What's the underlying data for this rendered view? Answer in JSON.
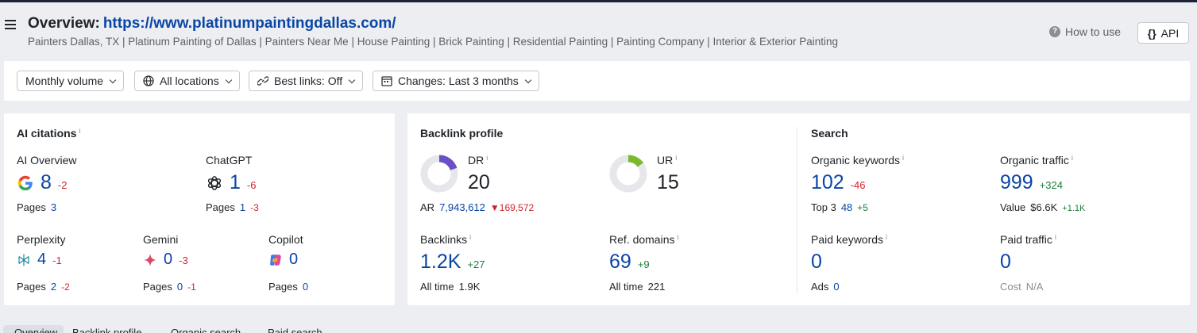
{
  "header": {
    "title_prefix": "Overview:",
    "url": "https://www.platinumpaintingdallas.com/",
    "subtitle": "Painters Dallas, TX | Platinum Painting of Dallas | Painters Near Me | House Painting | Brick Painting | Residential Painting | Painting Company | Interior & Exterior Painting",
    "how_to_use": "How to use",
    "api_label": "API",
    "api_icon_text": "{}"
  },
  "filters": {
    "volume": "Monthly volume",
    "locations": "All locations",
    "best_links": "Best links: Off",
    "changes": "Changes: Last 3 months"
  },
  "ai_citations": {
    "title": "AI citations",
    "info": "i",
    "ai_overview": {
      "label": "AI Overview",
      "value": "8",
      "delta": "-2",
      "pages_label": "Pages",
      "pages": "3"
    },
    "chatgpt": {
      "label": "ChatGPT",
      "value": "1",
      "delta": "-6",
      "pages_label": "Pages",
      "pages": "1",
      "pages_delta": "-3"
    },
    "perplexity": {
      "label": "Perplexity",
      "value": "4",
      "delta": "-1",
      "pages_label": "Pages",
      "pages": "2",
      "pages_delta": "-2"
    },
    "gemini": {
      "label": "Gemini",
      "value": "0",
      "delta": "-3",
      "pages_label": "Pages",
      "pages": "0",
      "pages_delta": "-1"
    },
    "copilot": {
      "label": "Copilot",
      "value": "0",
      "pages_label": "Pages",
      "pages": "0"
    }
  },
  "backlink_profile": {
    "title": "Backlink profile",
    "dr": {
      "label": "DR",
      "value": "20",
      "fill": 0.2
    },
    "ar": {
      "label": "AR",
      "value": "7,943,612",
      "delta": "169,572"
    },
    "ur": {
      "label": "UR",
      "value": "15",
      "fill": 0.15
    },
    "backlinks": {
      "label": "Backlinks",
      "value": "1.2K",
      "delta": "+27",
      "all_time_label": "All time",
      "all_time": "1.9K"
    },
    "ref_domains": {
      "label": "Ref. domains",
      "value": "69",
      "delta": "+9",
      "all_time_label": "All time",
      "all_time": "221"
    }
  },
  "search": {
    "title": "Search",
    "organic_keywords": {
      "label": "Organic keywords",
      "value": "102",
      "delta": "-46",
      "top3_label": "Top 3",
      "top3": "48",
      "top3_delta": "+5"
    },
    "organic_traffic": {
      "label": "Organic traffic",
      "value": "999",
      "delta": "+324",
      "value_label": "Value",
      "value_amount": "$6.6K",
      "value_delta": "+1.1K"
    },
    "paid_keywords": {
      "label": "Paid keywords",
      "value": "0",
      "ads_label": "Ads",
      "ads": "0"
    },
    "paid_traffic": {
      "label": "Paid traffic",
      "value": "0",
      "cost_label": "Cost",
      "cost": "N/A"
    }
  },
  "tabs": [
    "Overview",
    "Backlink profile",
    "Organic search",
    "Paid search"
  ],
  "colors": {
    "accent": "#0a46a5",
    "negative": "#d1242f",
    "positive": "#1a7f37",
    "dr_ring": "#6a4fc6",
    "ur_ring": "#7cb82f"
  }
}
